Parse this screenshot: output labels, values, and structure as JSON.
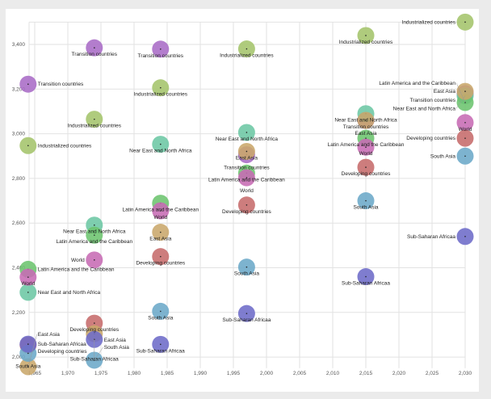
{
  "chart_data": {
    "type": "scatter",
    "title": "",
    "xlabel": "",
    "ylabel": "",
    "xlim": [
      1963,
      2031
    ],
    "ylim": [
      1950,
      3500
    ],
    "x_ticks": [
      "1,965",
      "1,970",
      "1,975",
      "1,980",
      "1,985",
      "1,990",
      "1,995",
      "2,000",
      "2,005",
      "2,010",
      "2,015",
      "2,020",
      "2,025",
      "2,030"
    ],
    "x_tick_values": [
      1965,
      1970,
      1975,
      1980,
      1985,
      1990,
      1995,
      2000,
      2005,
      2010,
      2015,
      2020,
      2025,
      2030
    ],
    "y_ticks": [
      "2,000",
      "2,200",
      "2,400",
      "2,600",
      "2,800",
      "3,000",
      "3,200",
      "3,400"
    ],
    "y_tick_values": [
      2000,
      2200,
      2400,
      2600,
      2800,
      3000,
      3200,
      3400
    ],
    "grid": true,
    "x": [
      1964,
      1974,
      1984,
      1997,
      2015,
      2030
    ],
    "series": [
      {
        "name": "Transition countries",
        "color": "#a86bc6",
        "values": [
          3222,
          3385,
          3379,
          2906,
          3060,
          3180
        ]
      },
      {
        "name": "Industrialized countries",
        "color": "#a4c46b",
        "values": [
          2947,
          3065,
          3206,
          3380,
          3440,
          3500
        ]
      },
      {
        "name": "Near East and North Africa",
        "color": "#6cc7a4",
        "values": [
          2290,
          2591,
          2953,
          3006,
          3090,
          3170
        ]
      },
      {
        "name": "Latin America and the Caribbean",
        "color": "#6cc46e",
        "values": [
          2393,
          2546,
          2689,
          2824,
          2980,
          3140
        ]
      },
      {
        "name": "World",
        "color": "#c76bb4",
        "values": [
          2358,
          2435,
          2655,
          2803,
          2940,
          3050
        ]
      },
      {
        "name": "Developing countries",
        "color": "#c66b6b",
        "values": [
          2054,
          2152,
          2450,
          2681,
          2850,
          2980
        ]
      },
      {
        "name": "East Asia",
        "color": "#c9a76b",
        "values": [
          1957,
          2105,
          2559,
          2921,
          3060,
          3190
        ]
      },
      {
        "name": "South Asia",
        "color": "#6ba9c8",
        "values": [
          2017,
          1986,
          2205,
          2403,
          2700,
          2900
        ]
      },
      {
        "name": "Sub-Saharan Africaa",
        "color": "#6d6bc8",
        "values": [
          2058,
          2079,
          2057,
          2195,
          2360,
          2540
        ]
      }
    ]
  }
}
